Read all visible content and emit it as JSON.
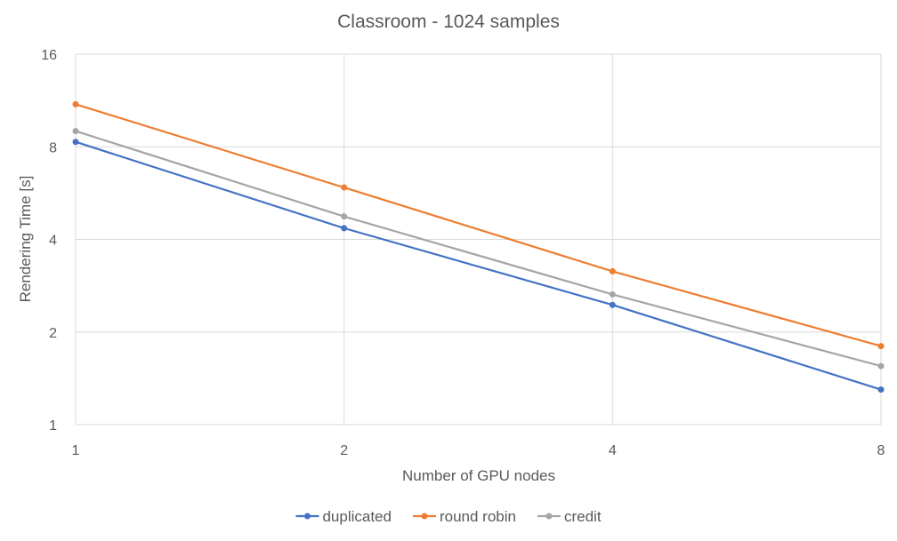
{
  "chart_data": {
    "type": "line",
    "title": "Classroom - 1024 samples",
    "xlabel": "Number of GPU nodes",
    "ylabel": "Rendering Time [s]",
    "x_scale": "log2",
    "y_scale": "log2",
    "x": [
      1,
      2,
      4,
      8
    ],
    "x_tick_labels": [
      "1",
      "2",
      "4",
      "8"
    ],
    "ylim": [
      1,
      16
    ],
    "y_ticks": [
      1,
      2,
      4,
      8,
      16
    ],
    "y_tick_labels": [
      "1",
      "2",
      "4",
      "8",
      "16"
    ],
    "grid": true,
    "legend_position": "bottom",
    "series": [
      {
        "name": "duplicated",
        "color": "#4472c4",
        "values": [
          8.3,
          4.35,
          2.45,
          1.3
        ]
      },
      {
        "name": "round robin",
        "color": "#ed7d31",
        "values": [
          11.0,
          5.9,
          3.15,
          1.8
        ]
      },
      {
        "name": "credit",
        "color": "#a5a5a5",
        "values": [
          9.0,
          4.75,
          2.65,
          1.55
        ]
      }
    ]
  }
}
